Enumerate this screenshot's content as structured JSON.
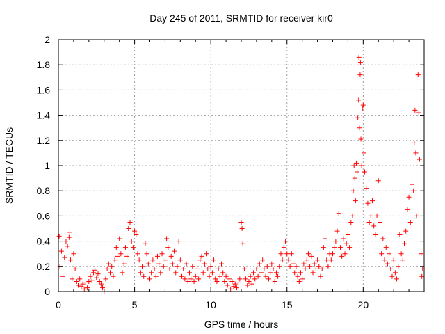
{
  "chart_data": {
    "type": "scatter",
    "title": "Day 245 of 2011, SRMTID for receiver kir0",
    "xlabel": "GPS time / hours",
    "ylabel": "SRMTID / TECUs",
    "xlim": [
      0,
      24
    ],
    "ylim": [
      0,
      2
    ],
    "x_ticks": [
      0,
      5,
      10,
      15,
      20
    ],
    "x_tick_labels": [
      "0",
      "5",
      "10",
      "15",
      "20"
    ],
    "y_ticks": [
      0,
      0.2,
      0.4,
      0.6,
      0.8,
      1,
      1.2,
      1.4,
      1.6,
      1.8,
      2
    ],
    "y_tick_labels": [
      "0",
      "0.2",
      "0.4",
      "0.6",
      "0.8",
      "1",
      "1.2",
      "1.4",
      "1.6",
      "1.8",
      "2"
    ],
    "grid": true,
    "marker": "+",
    "color": "#ff0000",
    "series": [
      {
        "name": "SRMTID",
        "points": [
          [
            0.05,
            0.44
          ],
          [
            0.1,
            0.2
          ],
          [
            0.2,
            0.32
          ],
          [
            0.3,
            0.12
          ],
          [
            0.4,
            0.27
          ],
          [
            0.5,
            0.4
          ],
          [
            0.6,
            0.36
          ],
          [
            0.7,
            0.43
          ],
          [
            0.75,
            0.47
          ],
          [
            0.8,
            0.25
          ],
          [
            0.9,
            0.1
          ],
          [
            1.0,
            0.3
          ],
          [
            1.1,
            0.18
          ],
          [
            1.2,
            0.08
          ],
          [
            1.3,
            0.05
          ],
          [
            1.4,
            0.1
          ],
          [
            1.5,
            0.04
          ],
          [
            1.6,
            0.06
          ],
          [
            1.7,
            0.02
          ],
          [
            1.8,
            0.07
          ],
          [
            1.9,
            0.03
          ],
          [
            2.0,
            0.08
          ],
          [
            2.1,
            0.12
          ],
          [
            2.2,
            0.09
          ],
          [
            2.3,
            0.15
          ],
          [
            2.4,
            0.17
          ],
          [
            2.5,
            0.11
          ],
          [
            2.6,
            0.14
          ],
          [
            2.7,
            0.08
          ],
          [
            2.8,
            0.06
          ],
          [
            2.9,
            0.03
          ],
          [
            3.0,
            0.0
          ],
          [
            3.1,
            0.1
          ],
          [
            3.2,
            0.18
          ],
          [
            3.3,
            0.22
          ],
          [
            3.4,
            0.15
          ],
          [
            3.5,
            0.2
          ],
          [
            3.6,
            0.12
          ],
          [
            3.7,
            0.25
          ],
          [
            3.8,
            0.35
          ],
          [
            3.9,
            0.28
          ],
          [
            4.0,
            0.42
          ],
          [
            4.1,
            0.3
          ],
          [
            4.2,
            0.15
          ],
          [
            4.3,
            0.22
          ],
          [
            4.4,
            0.35
          ],
          [
            4.5,
            0.28
          ],
          [
            4.6,
            0.5
          ],
          [
            4.7,
            0.55
          ],
          [
            4.8,
            0.4
          ],
          [
            4.9,
            0.35
          ],
          [
            5.0,
            0.48
          ],
          [
            5.1,
            0.45
          ],
          [
            5.2,
            0.3
          ],
          [
            5.3,
            0.25
          ],
          [
            5.4,
            0.15
          ],
          [
            5.5,
            0.2
          ],
          [
            5.6,
            0.12
          ],
          [
            5.7,
            0.38
          ],
          [
            5.8,
            0.3
          ],
          [
            5.9,
            0.22
          ],
          [
            6.0,
            0.1
          ],
          [
            6.1,
            0.15
          ],
          [
            6.2,
            0.25
          ],
          [
            6.3,
            0.18
          ],
          [
            6.4,
            0.12
          ],
          [
            6.5,
            0.28
          ],
          [
            6.6,
            0.22
          ],
          [
            6.7,
            0.15
          ],
          [
            6.8,
            0.3
          ],
          [
            6.9,
            0.2
          ],
          [
            7.0,
            0.25
          ],
          [
            7.1,
            0.42
          ],
          [
            7.2,
            0.35
          ],
          [
            7.3,
            0.18
          ],
          [
            7.4,
            0.28
          ],
          [
            7.5,
            0.22
          ],
          [
            7.6,
            0.32
          ],
          [
            7.7,
            0.15
          ],
          [
            7.8,
            0.2
          ],
          [
            7.9,
            0.4
          ],
          [
            8.0,
            0.25
          ],
          [
            8.1,
            0.12
          ],
          [
            8.2,
            0.18
          ],
          [
            8.3,
            0.1
          ],
          [
            8.4,
            0.22
          ],
          [
            8.5,
            0.08
          ],
          [
            8.6,
            0.15
          ],
          [
            8.7,
            0.1
          ],
          [
            8.8,
            0.2
          ],
          [
            8.9,
            0.08
          ],
          [
            9.0,
            0.12
          ],
          [
            9.1,
            0.18
          ],
          [
            9.2,
            0.1
          ],
          [
            9.3,
            0.25
          ],
          [
            9.4,
            0.28
          ],
          [
            9.5,
            0.15
          ],
          [
            9.6,
            0.22
          ],
          [
            9.7,
            0.3
          ],
          [
            9.8,
            0.18
          ],
          [
            9.9,
            0.12
          ],
          [
            10.0,
            0.2
          ],
          [
            10.1,
            0.15
          ],
          [
            10.2,
            0.25
          ],
          [
            10.3,
            0.1
          ],
          [
            10.4,
            0.08
          ],
          [
            10.5,
            0.18
          ],
          [
            10.6,
            0.12
          ],
          [
            10.7,
            0.22
          ],
          [
            10.8,
            0.15
          ],
          [
            10.9,
            0.08
          ],
          [
            11.0,
            0.12
          ],
          [
            11.1,
            0.05
          ],
          [
            11.2,
            0.1
          ],
          [
            11.3,
            0.02
          ],
          [
            11.4,
            0.08
          ],
          [
            11.5,
            0.04
          ],
          [
            11.6,
            0.06
          ],
          [
            11.7,
            0.03
          ],
          [
            11.8,
            0.07
          ],
          [
            11.9,
            0.1
          ],
          [
            12.0,
            0.55
          ],
          [
            12.05,
            0.5
          ],
          [
            12.1,
            0.38
          ],
          [
            12.2,
            0.18
          ],
          [
            12.3,
            0.1
          ],
          [
            12.4,
            0.05
          ],
          [
            12.5,
            0.08
          ],
          [
            12.6,
            0.12
          ],
          [
            12.7,
            0.06
          ],
          [
            12.8,
            0.15
          ],
          [
            12.9,
            0.1
          ],
          [
            13.0,
            0.18
          ],
          [
            13.1,
            0.12
          ],
          [
            13.2,
            0.22
          ],
          [
            13.3,
            0.15
          ],
          [
            13.4,
            0.25
          ],
          [
            13.5,
            0.18
          ],
          [
            13.6,
            0.12
          ],
          [
            13.7,
            0.2
          ],
          [
            13.8,
            0.1
          ],
          [
            13.9,
            0.15
          ],
          [
            14.0,
            0.22
          ],
          [
            14.1,
            0.18
          ],
          [
            14.2,
            0.08
          ],
          [
            14.3,
            0.15
          ],
          [
            14.4,
            0.12
          ],
          [
            14.5,
            0.2
          ],
          [
            14.6,
            0.3
          ],
          [
            14.7,
            0.25
          ],
          [
            14.8,
            0.35
          ],
          [
            14.9,
            0.4
          ],
          [
            15.0,
            0.3
          ],
          [
            15.1,
            0.25
          ],
          [
            15.2,
            0.2
          ],
          [
            15.3,
            0.3
          ],
          [
            15.4,
            0.22
          ],
          [
            15.5,
            0.15
          ],
          [
            15.6,
            0.2
          ],
          [
            15.7,
            0.12
          ],
          [
            15.8,
            0.08
          ],
          [
            15.9,
            0.15
          ],
          [
            16.0,
            0.1
          ],
          [
            16.1,
            0.22
          ],
          [
            16.2,
            0.18
          ],
          [
            16.3,
            0.25
          ],
          [
            16.4,
            0.3
          ],
          [
            16.5,
            0.2
          ],
          [
            16.6,
            0.28
          ],
          [
            16.7,
            0.15
          ],
          [
            16.8,
            0.22
          ],
          [
            16.9,
            0.18
          ],
          [
            17.0,
            0.25
          ],
          [
            17.1,
            0.2
          ],
          [
            17.2,
            0.12
          ],
          [
            17.3,
            0.18
          ],
          [
            17.4,
            0.35
          ],
          [
            17.5,
            0.42
          ],
          [
            17.6,
            0.25
          ],
          [
            17.7,
            0.2
          ],
          [
            17.8,
            0.3
          ],
          [
            17.9,
            0.25
          ],
          [
            18.0,
            0.3
          ],
          [
            18.1,
            0.35
          ],
          [
            18.2,
            0.4
          ],
          [
            18.3,
            0.48
          ],
          [
            18.4,
            0.62
          ],
          [
            18.5,
            0.35
          ],
          [
            18.6,
            0.28
          ],
          [
            18.7,
            0.42
          ],
          [
            18.8,
            0.3
          ],
          [
            18.9,
            0.38
          ],
          [
            19.0,
            0.45
          ],
          [
            19.1,
            0.35
          ],
          [
            19.2,
            0.55
          ],
          [
            19.3,
            0.6
          ],
          [
            19.35,
            0.8
          ],
          [
            19.4,
            1.0
          ],
          [
            19.45,
            0.9
          ],
          [
            19.5,
            0.72
          ],
          [
            19.55,
            1.02
          ],
          [
            19.6,
            0.95
          ],
          [
            19.65,
            1.38
          ],
          [
            19.7,
            1.52
          ],
          [
            19.72,
            1.86
          ],
          [
            19.75,
            1.3
          ],
          [
            19.8,
            1.72
          ],
          [
            19.82,
            1.82
          ],
          [
            19.85,
            1.21
          ],
          [
            19.9,
            1.0
          ],
          [
            19.95,
            1.45
          ],
          [
            20.0,
            1.48
          ],
          [
            20.05,
            1.1
          ],
          [
            20.1,
            0.95
          ],
          [
            20.2,
            0.82
          ],
          [
            20.3,
            0.7
          ],
          [
            20.4,
            0.55
          ],
          [
            20.5,
            0.6
          ],
          [
            20.6,
            0.72
          ],
          [
            20.7,
            0.52
          ],
          [
            20.8,
            0.45
          ],
          [
            20.9,
            0.6
          ],
          [
            21.0,
            0.88
          ],
          [
            21.1,
            0.55
          ],
          [
            21.2,
            0.3
          ],
          [
            21.3,
            0.42
          ],
          [
            21.4,
            0.25
          ],
          [
            21.5,
            0.35
          ],
          [
            21.6,
            0.22
          ],
          [
            21.7,
            0.3
          ],
          [
            21.8,
            0.18
          ],
          [
            21.9,
            0.12
          ],
          [
            22.0,
            0.25
          ],
          [
            22.1,
            0.15
          ],
          [
            22.2,
            0.1
          ],
          [
            22.3,
            0.2
          ],
          [
            22.4,
            0.45
          ],
          [
            22.5,
            0.3
          ],
          [
            22.6,
            0.25
          ],
          [
            22.7,
            0.38
          ],
          [
            22.8,
            0.48
          ],
          [
            22.9,
            0.65
          ],
          [
            23.0,
            0.75
          ],
          [
            23.1,
            0.55
          ],
          [
            23.2,
            0.85
          ],
          [
            23.3,
            0.8
          ],
          [
            23.35,
            1.18
          ],
          [
            23.4,
            1.44
          ],
          [
            23.45,
            1.1
          ],
          [
            23.5,
            0.6
          ],
          [
            23.6,
            1.72
          ],
          [
            23.65,
            1.42
          ],
          [
            23.7,
            1.05
          ],
          [
            23.8,
            0.3
          ],
          [
            23.85,
            0.12
          ],
          [
            23.9,
            0.18
          ]
        ]
      }
    ]
  }
}
